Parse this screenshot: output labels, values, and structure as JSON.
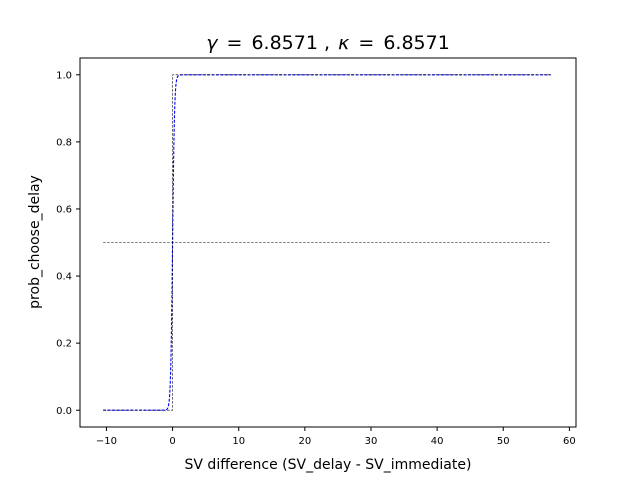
{
  "chart_data": {
    "type": "line",
    "title": {
      "gamma_symbol": "γ",
      "gamma_value": "6.8571",
      "separator": ",",
      "kappa_symbol": "κ",
      "kappa_value": "6.8571"
    },
    "xlabel": "SV difference (SV_delay - SV_immediate)",
    "ylabel": "prob_choose_delay",
    "xlim": [
      -14.0,
      61.0
    ],
    "ylim": [
      -0.05,
      1.05
    ],
    "xticks": [
      -10,
      0,
      10,
      20,
      30,
      40,
      50,
      60
    ],
    "xtick_labels": [
      "−10",
      "0",
      "10",
      "20",
      "30",
      "40",
      "50",
      "60"
    ],
    "yticks": [
      0.0,
      0.2,
      0.4,
      0.6,
      0.8,
      1.0
    ],
    "ytick_labels": [
      "0.0",
      "0.2",
      "0.4",
      "0.6",
      "0.8",
      "1.0"
    ],
    "grid": false,
    "series": [
      {
        "kind": "logistic",
        "gamma": 6.8571,
        "x_range": [
          -10.5,
          57.2
        ],
        "color": "#0000ff",
        "style": "dashed"
      },
      {
        "kind": "step",
        "x": [
          -10.5,
          0,
          0,
          57.2
        ],
        "y": [
          0,
          0,
          1,
          1
        ],
        "color": "#000000",
        "style": "dashed"
      },
      {
        "kind": "hline",
        "x": [
          -10.5,
          57.2
        ],
        "y": [
          0.5,
          0.5
        ],
        "color": "#000000",
        "style": "dashed"
      }
    ]
  }
}
